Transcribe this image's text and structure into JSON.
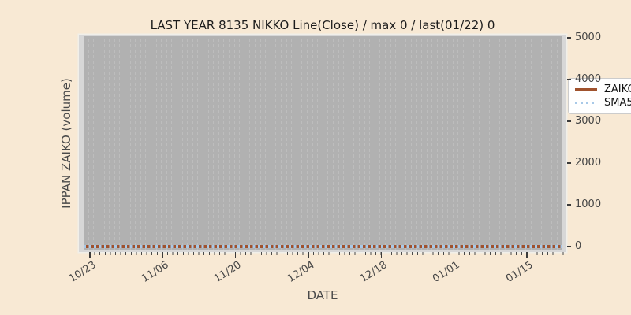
{
  "figure": {
    "background_color": "#f8e9d4",
    "plot_background_color": "#b1b1b1",
    "plot_edge_color": "#d7d7d7",
    "gridline_color": "#c9c9c9",
    "tick_color": "#3b3b3b",
    "text_color": "#454545"
  },
  "chart_data": {
    "type": "line",
    "title": "LAST YEAR 8135 NIKKO Line(Close) / max 0 / last(01/22) 0",
    "xlabel": "DATE",
    "ylabel": "IPPAN ZAIKO (volume)",
    "x_tick_labels": [
      "10/23",
      "11/06",
      "11/20",
      "12/04",
      "12/18",
      "01/01",
      "01/15"
    ],
    "x_tick_interval_days": 14,
    "x_range": [
      "10/23",
      "01/22"
    ],
    "y_ticks": [
      0,
      1000,
      2000,
      3000,
      4000,
      5000
    ],
    "ylim": [
      -95,
      5040
    ],
    "grid": "vertical dashed, one line per day",
    "y_axis_side": "right",
    "legend_position": "upper right",
    "max_value": 0,
    "last_date": "01/22",
    "last_value": 0,
    "series": [
      {
        "name": "ZAIKO",
        "style": "solid",
        "color": "#a0522d",
        "constant_value": 0
      },
      {
        "name": "SMA5",
        "style": "dotted",
        "color": "#a8c9e8",
        "constant_value": 0
      }
    ]
  }
}
